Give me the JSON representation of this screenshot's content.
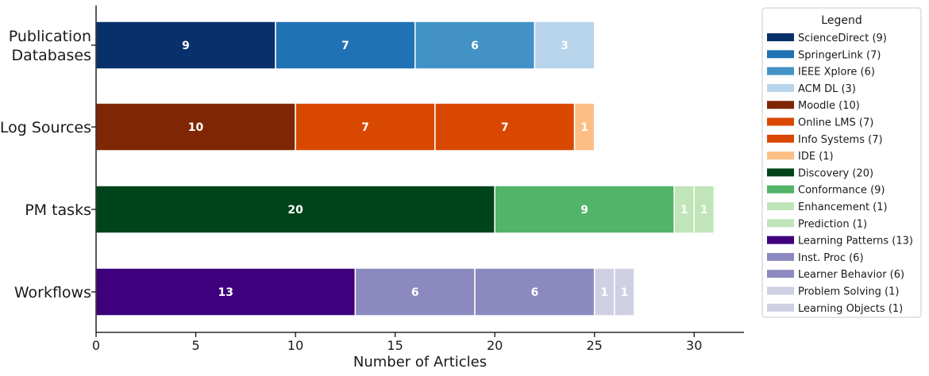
{
  "chart_data": {
    "type": "bar",
    "orientation": "horizontal",
    "stacked": true,
    "xlabel": "Number of Articles",
    "ylabel": "",
    "xlim": [
      0,
      32.5
    ],
    "xticks": [
      0,
      5,
      10,
      15,
      20,
      25,
      30
    ],
    "grid": false,
    "legend": {
      "title": "Legend",
      "placement": "right"
    },
    "groups": [
      {
        "category": "Publication\nDatabases",
        "segments": [
          {
            "name": "ScienceDirect",
            "value": 9,
            "color": "#08306b",
            "label": "9"
          },
          {
            "name": "SpringerLink",
            "value": 7,
            "color": "#2171b5",
            "label": "7"
          },
          {
            "name": "IEEE Xplore",
            "value": 6,
            "color": "#4292c6",
            "label": "6"
          },
          {
            "name": "ACM DL",
            "value": 3,
            "color": "#b8d4ea",
            "label": "3"
          }
        ]
      },
      {
        "category": "Log Sources",
        "segments": [
          {
            "name": "Moodle",
            "value": 10,
            "color": "#7f2704",
            "label": "10"
          },
          {
            "name": "Online LMS",
            "value": 7,
            "color": "#d94801",
            "label": "7"
          },
          {
            "name": "Info Systems",
            "value": 7,
            "color": "#d94801",
            "label": "7"
          },
          {
            "name": "IDE",
            "value": 1,
            "color": "#fdbe85",
            "label": "1"
          }
        ]
      },
      {
        "category": "PM tasks",
        "segments": [
          {
            "name": "Discovery",
            "value": 20,
            "color": "#00441b",
            "label": "20"
          },
          {
            "name": "Conformance",
            "value": 9,
            "color": "#52b468",
            "label": "9"
          },
          {
            "name": "Enhancement",
            "value": 1,
            "color": "#bfe5b9",
            "label": "1"
          },
          {
            "name": "Prediction",
            "value": 1,
            "color": "#bfe5b9",
            "label": "1"
          }
        ]
      },
      {
        "category": "Workflows",
        "segments": [
          {
            "name": "Learning Patterns",
            "value": 13,
            "color": "#3f007d",
            "label": "13"
          },
          {
            "name": "Inst. Proc",
            "value": 6,
            "color": "#8c89c0",
            "label": "6"
          },
          {
            "name": "Learner Behavior",
            "value": 6,
            "color": "#8c89c0",
            "label": "6"
          },
          {
            "name": "Problem Solving",
            "value": 1,
            "color": "#d0d0e5",
            "label": "1"
          },
          {
            "name": "Learning Objects",
            "value": 1,
            "color": "#d0d0e5",
            "label": "1"
          }
        ]
      }
    ],
    "legend_entries": [
      {
        "label": "ScienceDirect (9)",
        "color": "#08306b"
      },
      {
        "label": "SpringerLink (7)",
        "color": "#2171b5"
      },
      {
        "label": "IEEE Xplore (6)",
        "color": "#4292c6"
      },
      {
        "label": "ACM DL (3)",
        "color": "#b8d4ea"
      },
      {
        "label": "Moodle (10)",
        "color": "#7f2704"
      },
      {
        "label": "Online LMS (7)",
        "color": "#d94801"
      },
      {
        "label": "Info Systems (7)",
        "color": "#d94801"
      },
      {
        "label": "IDE (1)",
        "color": "#fdbe85"
      },
      {
        "label": "Discovery (20)",
        "color": "#00441b"
      },
      {
        "label": "Conformance (9)",
        "color": "#52b468"
      },
      {
        "label": "Enhancement (1)",
        "color": "#bfe5b9"
      },
      {
        "label": "Prediction (1)",
        "color": "#bfe5b9"
      },
      {
        "label": "Learning Patterns (13)",
        "color": "#3f007d"
      },
      {
        "label": "Inst. Proc (6)",
        "color": "#8c89c0"
      },
      {
        "label": "Learner Behavior (6)",
        "color": "#8c89c0"
      },
      {
        "label": "Problem Solving (1)",
        "color": "#d0d0e5"
      },
      {
        "label": "Learning Objects (1)",
        "color": "#d0d0e5"
      }
    ]
  }
}
